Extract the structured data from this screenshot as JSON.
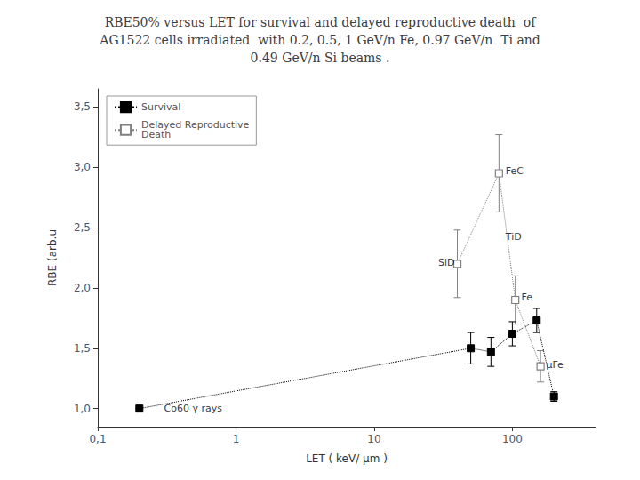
{
  "chart_data": {
    "type": "line",
    "title": "RBE50% versus LET for survival and delayed reproductive death  of\nAG1522 cells irradiated  with 0.2, 0.5, 1 GeV/n Fe, 0.97 GeV/n  Ti and\n0.49 GeV/n Si beams .",
    "xlabel": "LET ( keV/ μm )",
    "ylabel": "RBE (arb.u",
    "log": "x",
    "grid": false,
    "legend": "upper left",
    "xlim": [
      0.1,
      400
    ],
    "ylim": [
      0.85,
      3.65
    ],
    "xticks": [
      {
        "value": 0.1,
        "label": "0,1"
      },
      1,
      10,
      100
    ],
    "yticks": [
      {
        "value": 1.0,
        "label": "1,0"
      },
      {
        "value": 1.5,
        "label": "1,5"
      },
      {
        "value": 2.0,
        "label": "2,0"
      },
      {
        "value": 2.5,
        "label": "2,5"
      },
      {
        "value": 3.0,
        "label": "3,0"
      },
      {
        "value": 3.5,
        "label": "3,5"
      }
    ],
    "series": [
      {
        "name": "Survival",
        "color": "#000000",
        "marker": "square",
        "line_style": "dotted",
        "x": [
          0.2,
          50,
          70,
          100,
          150,
          200
        ],
        "values": [
          1.0,
          1.5,
          1.47,
          1.62,
          1.73,
          1.1
        ],
        "yerr_lo": [
          0.0,
          0.13,
          0.12,
          0.1,
          0.1,
          0.04
        ],
        "yerr_hi": [
          0.0,
          0.13,
          0.12,
          0.1,
          0.1,
          0.04
        ]
      },
      {
        "name": "Delayed Reproductive\nDeath",
        "color": "#808080",
        "marker": "open_square",
        "line_style": "dotted",
        "x": [
          40,
          80,
          105,
          160
        ],
        "values": [
          2.2,
          2.95,
          1.9,
          1.35
        ],
        "yerr_lo": [
          0.28,
          0.32,
          0.2,
          0.13
        ],
        "yerr_hi": [
          0.28,
          0.32,
          0.2,
          0.13
        ]
      }
    ],
    "annotations": [
      {
        "text": "Co60 γ rays",
        "x": 0.28,
        "y": 0.96
      },
      {
        "text": "SiD",
        "x": 27,
        "y": 2.17
      },
      {
        "text": "FeC",
        "x": 83,
        "y": 2.93
      },
      {
        "text": "TiD",
        "x": 83,
        "y": 2.38
      },
      {
        "text": "Fe",
        "x": 108,
        "y": 1.88
      },
      {
        "text": "μFe",
        "x": 163,
        "y": 1.32
      }
    ]
  }
}
